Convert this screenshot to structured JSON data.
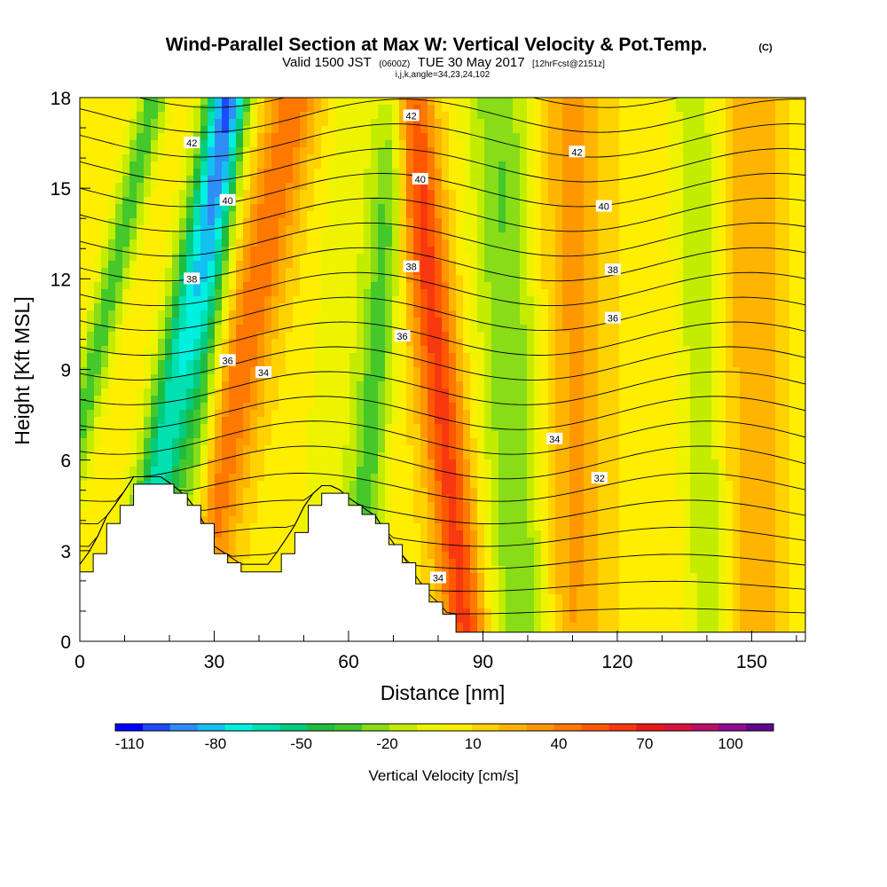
{
  "header": {
    "title": "Wind-Parallel Section at Max W: Vertical Velocity & Pot.Temp.",
    "copyright": "(C)",
    "subtitle_a": "Valid 1500 JST",
    "subtitle_b": "(0600Z)",
    "subtitle_c": "TUE 30 May 2017",
    "subtitle_d": "[12hrFcst@2151z]",
    "meta": "i,j,k,angle=34,23,24,102"
  },
  "chart_data": {
    "type": "heatmap",
    "xlabel": "Distance [nm]",
    "ylabel": "Height [Kft MSL]",
    "xlim": [
      0,
      162
    ],
    "ylim": [
      0,
      18
    ],
    "x_ticks": [
      0,
      30,
      60,
      90,
      120,
      150
    ],
    "y_ticks": [
      0,
      3,
      6,
      9,
      12,
      15,
      18
    ],
    "colorbar": {
      "label": "Vertical Velocity [cm/s]",
      "tick_labels": [
        "-110",
        "-80",
        "-50",
        "-20",
        "10",
        "40",
        "70",
        "100"
      ],
      "tick_values": [
        -110,
        -80,
        -50,
        -20,
        10,
        40,
        70,
        100
      ],
      "range": [
        -115,
        115
      ],
      "colors": [
        "#0000ff",
        "#1c4cf8",
        "#2e8ef6",
        "#14c0f0",
        "#00f0e0",
        "#00e0b0",
        "#00cc80",
        "#20bc40",
        "#44c82a",
        "#88dc18",
        "#c4ec00",
        "#eef400",
        "#ffee00",
        "#ffd200",
        "#ffb400",
        "#ff9800",
        "#ff7800",
        "#ff5800",
        "#f83810",
        "#e81818",
        "#d81240",
        "#b81068",
        "#900c90",
        "#60088c"
      ]
    },
    "field_ridges": [
      {
        "x_axis": 3,
        "tilt": 1.5,
        "value": -40,
        "width": 3.5
      },
      {
        "x_axis": 22,
        "tilt": 1.2,
        "value": -70,
        "width": 5
      },
      {
        "x_axis": 28,
        "tilt": 0.6,
        "value": -35,
        "width": 4
      },
      {
        "x_axis": 36,
        "tilt": 1.3,
        "value": 40,
        "width": 6
      },
      {
        "x_axis": 57,
        "tilt": 0.5,
        "value": -15,
        "width": 5
      },
      {
        "x_axis": 66,
        "tilt": 0.5,
        "value": -40,
        "width": 4
      },
      {
        "x_axis": 80,
        "tilt": -0.7,
        "value": 55,
        "width": 5
      },
      {
        "x_axis": 96,
        "tilt": -0.3,
        "value": -35,
        "width": 7
      },
      {
        "x_axis": 110,
        "tilt": 0,
        "value": 25,
        "width": 7
      },
      {
        "x_axis": 139,
        "tilt": -0.2,
        "value": -25,
        "width": 5
      },
      {
        "x_axis": 150,
        "tilt": 0,
        "value": 20,
        "width": 7
      }
    ],
    "terrain": [
      [
        0,
        2.3
      ],
      [
        3,
        2.9
      ],
      [
        6,
        3.9
      ],
      [
        9,
        4.5
      ],
      [
        12,
        5.2
      ],
      [
        15,
        5.2
      ],
      [
        18,
        5.2
      ],
      [
        21,
        4.9
      ],
      [
        24,
        4.5
      ],
      [
        27,
        3.9
      ],
      [
        30,
        2.9
      ],
      [
        33,
        2.6
      ],
      [
        36,
        2.3
      ],
      [
        39,
        2.3
      ],
      [
        42,
        2.3
      ],
      [
        45,
        2.9
      ],
      [
        48,
        3.6
      ],
      [
        51,
        4.5
      ],
      [
        54,
        4.9
      ],
      [
        57,
        4.9
      ],
      [
        60,
        4.5
      ],
      [
        63,
        4.2
      ],
      [
        66,
        3.9
      ],
      [
        69,
        3.2
      ],
      [
        72,
        2.6
      ],
      [
        75,
        1.9
      ],
      [
        78,
        1.3
      ],
      [
        81,
        0.9
      ],
      [
        84,
        0.3
      ],
      [
        87,
        0.3
      ],
      [
        90,
        0.3
      ],
      [
        162,
        0.3
      ]
    ],
    "contour_labels": [
      {
        "text": "42",
        "x": 25,
        "y": 16.5
      },
      {
        "text": "40",
        "x": 33,
        "y": 14.6
      },
      {
        "text": "38",
        "x": 25,
        "y": 12.0
      },
      {
        "text": "36",
        "x": 33,
        "y": 9.3
      },
      {
        "text": "34",
        "x": 41,
        "y": 8.9
      },
      {
        "text": "42",
        "x": 74,
        "y": 17.4
      },
      {
        "text": "40",
        "x": 76,
        "y": 15.3
      },
      {
        "text": "38",
        "x": 74,
        "y": 12.4
      },
      {
        "text": "36",
        "x": 72,
        "y": 10.1
      },
      {
        "text": "34",
        "x": 80,
        "y": 2.1
      },
      {
        "text": "42",
        "x": 111,
        "y": 16.2
      },
      {
        "text": "40",
        "x": 117,
        "y": 14.4
      },
      {
        "text": "38",
        "x": 119,
        "y": 12.3
      },
      {
        "text": "36",
        "x": 119,
        "y": 10.7
      },
      {
        "text": "34",
        "x": 106,
        "y": 6.7
      },
      {
        "text": "32",
        "x": 116,
        "y": 5.4
      }
    ]
  }
}
